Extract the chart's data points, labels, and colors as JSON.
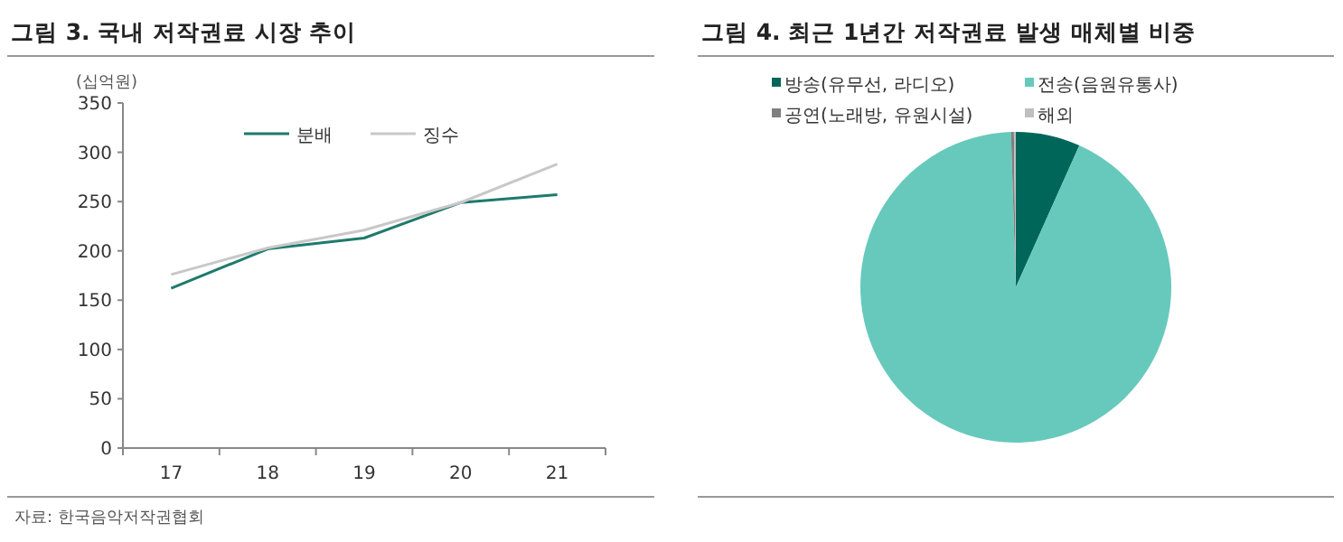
{
  "chart_data": [
    {
      "type": "line",
      "title": "그림 3. 국내 저작권료 시장 추이",
      "ylabel": "(십억원)",
      "categories": [
        "17",
        "18",
        "19",
        "20",
        "21"
      ],
      "ylim": [
        0,
        350
      ],
      "yticks": [
        0,
        50,
        100,
        150,
        200,
        250,
        300,
        350
      ],
      "legend": "top",
      "grid": false,
      "series": [
        {
          "name": "분배",
          "color": "#1f7a6c",
          "values": [
            162,
            202,
            213,
            249,
            257
          ]
        },
        {
          "name": "징수",
          "color": "#c8c8c8",
          "values": [
            176,
            203,
            221,
            249,
            288
          ]
        }
      ],
      "annotations": [
        "자료: 한국음악저작권협회"
      ]
    },
    {
      "type": "pie",
      "title": "그림 4. 최근 1년간 저작권료 발생 매체별 비중",
      "categories": [
        "방송(유무선, 라디오)",
        "전송(음원유통사)",
        "공연(노래방, 유원시설)",
        "해외"
      ],
      "values": [
        6.7,
        92.8,
        0.3,
        0.2
      ],
      "colors": [
        "#00665a",
        "#66c9bc",
        "#7f7f7f",
        "#bfbfbf"
      ],
      "legend": "top"
    }
  ]
}
